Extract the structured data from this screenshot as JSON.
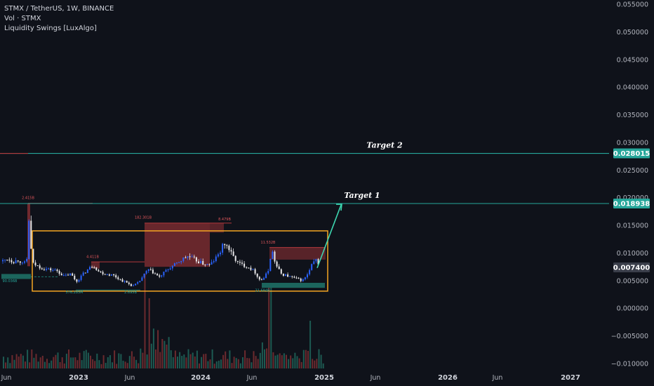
{
  "legend": {
    "symbol": "STMX / TetherUS, 1W, BINANCE",
    "volume": "Vol · STMX",
    "indicator": "Liquidity Swings [LuxAlgo]"
  },
  "colors": {
    "background": "#0f121a",
    "bull": "#2962ff",
    "bear": "#e8e8ea",
    "target_line": "#26a69a",
    "zone_red": "#b2393c",
    "zone_green": "#1f7a6e",
    "box": "#f5a623",
    "arrow": "#3dd6b0",
    "price_tag_current": "#3a3e4a",
    "vol_up": "#1d5a52",
    "vol_down": "#6b2a2e"
  },
  "chart_data": {
    "type": "candlestick",
    "title": "STMX / TetherUS, 1W, BINANCE",
    "ylim": [
      -0.0105,
      0.0555
    ],
    "x_ticks": [
      "Jun",
      "2023",
      "Jun",
      "2024",
      "Jun",
      "2025",
      "Jun",
      "2026",
      "Jun",
      "2027"
    ],
    "y_ticks": [
      "0.055000",
      "0.050000",
      "0.045000",
      "0.040000",
      "0.035000",
      "0.030000",
      "0.025000",
      "0.020000",
      "0.015000",
      "0.010000",
      "0.005000",
      "0.000000",
      "−0.005000",
      "−0.010000"
    ],
    "price_levels": [
      {
        "name": "Target 2",
        "value": 0.028015,
        "label": "0.028015"
      },
      {
        "name": "Target 1",
        "value": 0.018938,
        "label": "0.018938"
      }
    ],
    "current_price": {
      "value": 0.0074,
      "label": "0.007400"
    },
    "swing_labels": [
      {
        "text": "2.415B",
        "kind": "high"
      },
      {
        "text": "182.301B",
        "kind": "high"
      },
      {
        "text": "8.479B",
        "kind": "high"
      },
      {
        "text": "4.411B",
        "kind": "high"
      },
      {
        "text": "11.532B",
        "kind": "high"
      },
      {
        "text": "90.036B",
        "kind": "low"
      },
      {
        "text": "576.285M",
        "kind": "low"
      },
      {
        "text": "2.695B",
        "kind": "low"
      },
      {
        "text": "21.694B",
        "kind": "low"
      }
    ],
    "range_box": {
      "low": 0.0031,
      "high": 0.014
    }
  }
}
